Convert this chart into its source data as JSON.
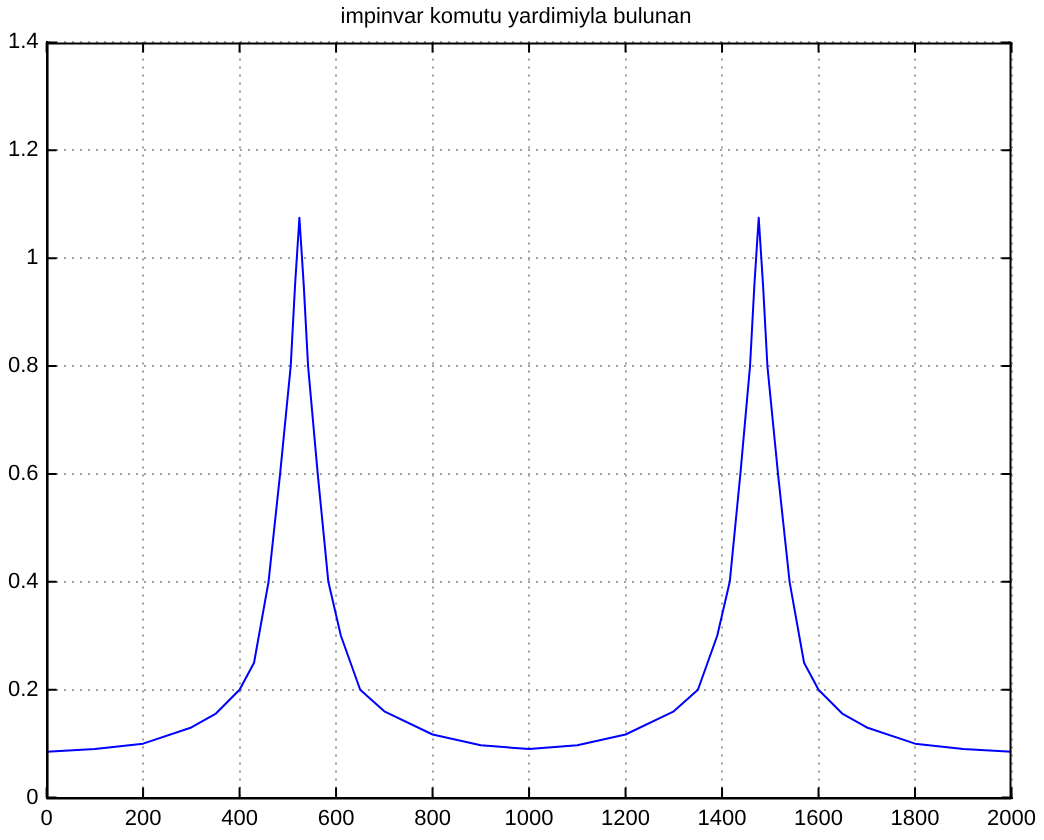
{
  "chart_data": {
    "type": "line",
    "title": "impinvar komutu yardimiyla bulunan",
    "x": [
      0,
      100,
      200,
      300,
      350,
      400,
      430,
      460,
      484,
      506,
      515,
      524,
      533,
      542,
      562,
      584,
      610,
      650,
      700,
      800,
      900,
      1000,
      1100,
      1200,
      1300,
      1350,
      1390,
      1416,
      1438,
      1458,
      1467,
      1476,
      1485,
      1494,
      1516,
      1540,
      1570,
      1600,
      1650,
      1700,
      1800,
      1900,
      2000
    ],
    "series": [
      {
        "color": "#0000ff",
        "values": [
          0.085,
          0.09,
          0.1,
          0.13,
          0.155,
          0.2,
          0.25,
          0.4,
          0.6,
          0.8,
          0.95,
          1.075,
          0.95,
          0.8,
          0.6,
          0.4,
          0.3,
          0.2,
          0.16,
          0.117,
          0.097,
          0.09,
          0.097,
          0.117,
          0.16,
          0.2,
          0.3,
          0.4,
          0.6,
          0.8,
          0.95,
          1.075,
          0.95,
          0.8,
          0.6,
          0.4,
          0.25,
          0.2,
          0.155,
          0.13,
          0.1,
          0.09,
          0.085
        ]
      }
    ],
    "xlim": [
      0,
      2000
    ],
    "xticks": [
      0,
      200,
      400,
      600,
      800,
      1000,
      1200,
      1400,
      1600,
      1800,
      2000
    ],
    "ylim": [
      0,
      1.4
    ],
    "yticks": [
      0,
      0.2,
      0.4,
      0.6,
      0.8,
      1,
      1.2,
      1.4
    ],
    "grid": true,
    "legend": false,
    "marker": "none",
    "line_style": "solid"
  }
}
